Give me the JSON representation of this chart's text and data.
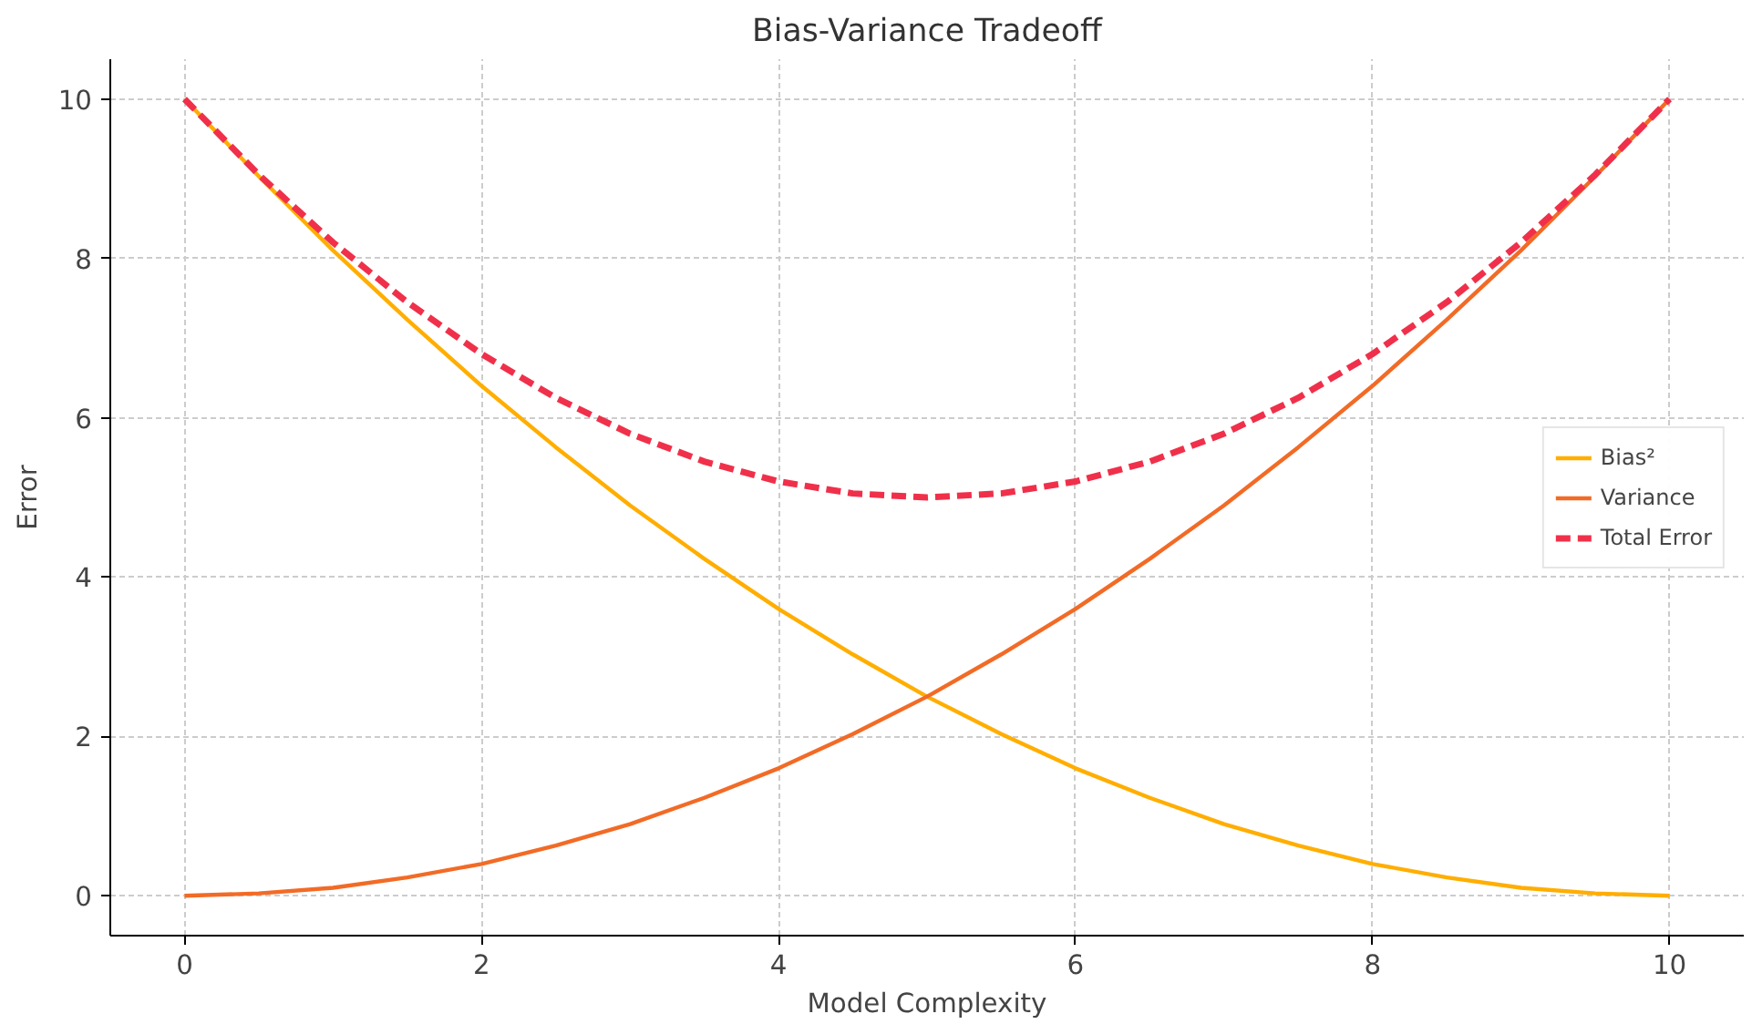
{
  "chart_data": {
    "type": "line",
    "title": "Bias-Variance Tradeoff",
    "xlabel": "Model Complexity",
    "ylabel": "Error",
    "x": [
      0,
      0.5,
      1,
      1.5,
      2,
      2.5,
      3,
      3.5,
      4,
      4.5,
      5,
      5.5,
      6,
      6.5,
      7,
      7.5,
      8,
      8.5,
      9,
      9.5,
      10
    ],
    "series": [
      {
        "name": "Bias²",
        "color": "#ffae00",
        "line_style": "solid",
        "values": [
          10,
          9.03,
          8.1,
          7.23,
          6.4,
          5.63,
          4.9,
          4.23,
          3.6,
          3.03,
          2.5,
          2.03,
          1.6,
          1.23,
          0.9,
          0.63,
          0.4,
          0.23,
          0.1,
          0.03,
          0
        ]
      },
      {
        "name": "Variance",
        "color": "#f26b26",
        "line_style": "solid",
        "values": [
          0,
          0.03,
          0.1,
          0.23,
          0.4,
          0.63,
          0.9,
          1.23,
          1.6,
          2.03,
          2.5,
          3.03,
          3.6,
          4.23,
          4.9,
          5.63,
          6.4,
          7.23,
          8.1,
          9.03,
          10
        ]
      },
      {
        "name": "Total Error",
        "color": "#f0304a",
        "line_style": "dashed",
        "values": [
          10,
          9.05,
          8.2,
          7.45,
          6.8,
          6.25,
          5.8,
          5.45,
          5.2,
          5.05,
          5,
          5.05,
          5.2,
          5.45,
          5.8,
          6.25,
          6.8,
          7.45,
          8.2,
          9.05,
          10
        ]
      }
    ],
    "xlim": [
      -0.5,
      10.5
    ],
    "ylim": [
      -0.5,
      10.5
    ],
    "xticks": [
      0,
      2,
      4,
      6,
      8,
      10
    ],
    "yticks": [
      0,
      2,
      4,
      6,
      8,
      10
    ],
    "grid": true,
    "legend": "right"
  }
}
